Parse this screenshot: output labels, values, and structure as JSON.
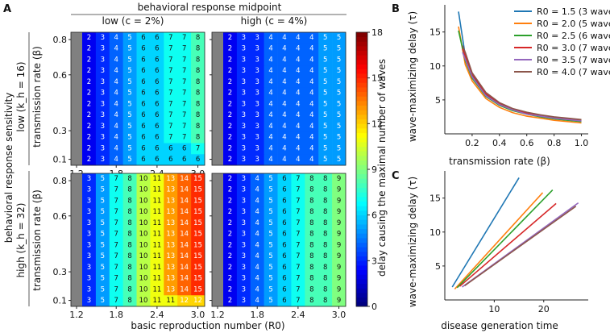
{
  "panel_labels": {
    "a": "A",
    "b": "B",
    "c": "C"
  },
  "chart_data": [
    {
      "panel": "A",
      "type": "heatmap",
      "title": "behavioral response midpoint",
      "col_titles": [
        "low (c = 2%)",
        "high (c = 4%)"
      ],
      "row_group_title": "behavioral response sensitivity",
      "row_titles": [
        "low (k_h = 16)",
        "high (k_h = 32)"
      ],
      "xlabel": "basic reproduction number (R0)",
      "ylabel": "transmission rate (β)",
      "xticks": [
        "1.2",
        "1.8",
        "2.4",
        "3.0"
      ],
      "yticks": [
        "0.1",
        "0.3",
        "0.6",
        "0.8"
      ],
      "colorbar_label": "delay causing the maximal number of waves",
      "colorbar_ticks": [
        "0",
        "3",
        "6",
        "9",
        "12",
        "15",
        "18"
      ],
      "colorbar_range": [
        0,
        18
      ],
      "note": "Grey column = not applicable. Rows listed top (β≈0.8) to bottom (β≈0.1).",
      "subplots": [
        {
          "name": "low-k16-low-c2",
          "rows": [
            [
              "2",
              "3",
              "4",
              "5",
              "6",
              "6",
              "7",
              "7",
              "8"
            ],
            [
              "2",
              "3",
              "4",
              "5",
              "6",
              "6",
              "7",
              "7",
              "8"
            ],
            [
              "2",
              "3",
              "4",
              "5",
              "6",
              "6",
              "7",
              "7",
              "8"
            ],
            [
              "2",
              "3",
              "4",
              "5",
              "6",
              "6",
              "7",
              "7",
              "8"
            ],
            [
              "2",
              "3",
              "4",
              "5",
              "6",
              "6",
              "7",
              "7",
              "8"
            ],
            [
              "2",
              "3",
              "4",
              "5",
              "6",
              "6",
              "7",
              "7",
              "8"
            ],
            [
              "2",
              "3",
              "4",
              "5",
              "6",
              "6",
              "7",
              "7",
              "8"
            ],
            [
              "2",
              "3",
              "4",
              "5",
              "6",
              "6",
              "7",
              "7",
              "8"
            ],
            [
              "2",
              "3",
              "4",
              "5",
              "6",
              "6",
              "7",
              "7",
              "8"
            ],
            [
              "2",
              "3",
              "4",
              "5",
              "6",
              "6",
              "7",
              "7",
              "8"
            ],
            [
              "2",
              "3",
              "4",
              "5",
              "6",
              "6",
              "6",
              "6",
              "7"
            ],
            [
              "2",
              "3",
              "4",
              "5",
              "6",
              "6",
              "6",
              "6",
              "6"
            ]
          ]
        },
        {
          "name": "low-k16-high-c4",
          "rows": [
            [
              "2",
              "3",
              "3",
              "4",
              "4",
              "4",
              "4",
              "5",
              "5"
            ],
            [
              "2",
              "3",
              "3",
              "4",
              "4",
              "4",
              "4",
              "5",
              "5"
            ],
            [
              "2",
              "3",
              "3",
              "4",
              "4",
              "4",
              "4",
              "5",
              "5"
            ],
            [
              "2",
              "3",
              "3",
              "4",
              "4",
              "4",
              "4",
              "5",
              "5"
            ],
            [
              "2",
              "3",
              "3",
              "4",
              "4",
              "4",
              "4",
              "5",
              "5"
            ],
            [
              "2",
              "3",
              "3",
              "4",
              "4",
              "4",
              "4",
              "5",
              "5"
            ],
            [
              "2",
              "3",
              "3",
              "4",
              "4",
              "4",
              "4",
              "5",
              "5"
            ],
            [
              "2",
              "3",
              "3",
              "4",
              "4",
              "4",
              "4",
              "5",
              "5"
            ],
            [
              "2",
              "3",
              "3",
              "4",
              "4",
              "4",
              "4",
              "5",
              "5"
            ],
            [
              "2",
              "3",
              "3",
              "4",
              "4",
              "4",
              "4",
              "5",
              "5"
            ],
            [
              "2",
              "3",
              "3",
              "4",
              "4",
              "4",
              "4",
              "5",
              "5"
            ],
            [
              "2",
              "3",
              "3",
              "4",
              "4",
              "4",
              "4",
              "5",
              "5"
            ]
          ]
        },
        {
          "name": "high-k32-low-c2",
          "rows": [
            [
              "3",
              "5",
              "7",
              "8",
              "10",
              "11",
              "13",
              "14",
              "15"
            ],
            [
              "3",
              "5",
              "7",
              "8",
              "10",
              "11",
              "13",
              "14",
              "15"
            ],
            [
              "3",
              "5",
              "7",
              "8",
              "10",
              "11",
              "13",
              "14",
              "15"
            ],
            [
              "3",
              "5",
              "7",
              "8",
              "10",
              "11",
              "13",
              "14",
              "15"
            ],
            [
              "3",
              "5",
              "7",
              "8",
              "10",
              "11",
              "13",
              "14",
              "15"
            ],
            [
              "3",
              "5",
              "7",
              "8",
              "10",
              "11",
              "13",
              "14",
              "15"
            ],
            [
              "3",
              "5",
              "7",
              "8",
              "10",
              "11",
              "13",
              "14",
              "15"
            ],
            [
              "3",
              "5",
              "7",
              "8",
              "10",
              "11",
              "13",
              "14",
              "15"
            ],
            [
              "3",
              "5",
              "7",
              "8",
              "10",
              "11",
              "13",
              "14",
              "15"
            ],
            [
              "3",
              "5",
              "7",
              "8",
              "10",
              "11",
              "13",
              "14",
              "15"
            ],
            [
              "3",
              "5",
              "7",
              "8",
              "10",
              "11",
              "13",
              "14",
              "15"
            ],
            [
              "3",
              "5",
              "7",
              "8",
              "10",
              "11",
              "11",
              "12",
              "12"
            ]
          ]
        },
        {
          "name": "high-k32-high-c4",
          "rows": [
            [
              "2",
              "3",
              "4",
              "5",
              "6",
              "7",
              "8",
              "8",
              "9"
            ],
            [
              "2",
              "3",
              "4",
              "5",
              "6",
              "7",
              "8",
              "8",
              "9"
            ],
            [
              "2",
              "3",
              "4",
              "5",
              "6",
              "7",
              "8",
              "8",
              "9"
            ],
            [
              "2",
              "3",
              "4",
              "5",
              "6",
              "7",
              "8",
              "8",
              "9"
            ],
            [
              "2",
              "3",
              "4",
              "5",
              "6",
              "7",
              "8",
              "8",
              "9"
            ],
            [
              "2",
              "3",
              "4",
              "5",
              "6",
              "7",
              "8",
              "8",
              "9"
            ],
            [
              "2",
              "3",
              "4",
              "5",
              "6",
              "7",
              "8",
              "8",
              "9"
            ],
            [
              "2",
              "3",
              "4",
              "5",
              "6",
              "7",
              "8",
              "8",
              "9"
            ],
            [
              "2",
              "3",
              "4",
              "5",
              "6",
              "7",
              "8",
              "8",
              "9"
            ],
            [
              "2",
              "3",
              "4",
              "5",
              "6",
              "7",
              "8",
              "8",
              "9"
            ],
            [
              "2",
              "3",
              "4",
              "5",
              "6",
              "7",
              "8",
              "8",
              "9"
            ],
            [
              "2",
              "3",
              "4",
              "5",
              "6",
              "7",
              "8",
              "8",
              "9"
            ]
          ]
        }
      ]
    },
    {
      "panel": "B",
      "type": "line",
      "xlabel": "transmission rate (β)",
      "ylabel": "wave-maximizing delay (τ)",
      "xlim": [
        0.0,
        1.05
      ],
      "ylim": [
        0,
        19
      ],
      "xticks": [
        "0.2",
        "0.4",
        "0.6",
        "0.8",
        "1.0"
      ],
      "yticks": [
        "5",
        "10",
        "15"
      ],
      "legend_position": "top-right",
      "series": [
        {
          "name": "R0 = 1.5 (3 waves)",
          "color": "#1f77b4",
          "x": [
            0.1,
            0.15,
            0.2,
            0.3,
            0.4,
            0.5,
            0.6,
            0.7,
            0.8,
            0.9,
            1.0
          ],
          "y": [
            18.0,
            11.5,
            8.6,
            5.8,
            4.4,
            3.6,
            3.0,
            2.6,
            2.3,
            2.1,
            1.9
          ]
        },
        {
          "name": "R0 = 2.0 (5 waves)",
          "color": "#ff7f0e",
          "x": [
            0.1,
            0.15,
            0.2,
            0.3,
            0.4,
            0.5,
            0.6,
            0.7,
            0.8,
            0.9,
            1.0
          ],
          "y": [
            15.8,
            10.2,
            7.8,
            5.2,
            3.9,
            3.1,
            2.6,
            2.3,
            2.0,
            1.8,
            1.6
          ]
        },
        {
          "name": "R0 = 2.5 (6 waves)",
          "color": "#2ca02c",
          "x": [
            0.1,
            0.15,
            0.2,
            0.3,
            0.4,
            0.5,
            0.6,
            0.7,
            0.8,
            0.9,
            1.0
          ],
          "y": [
            15.2,
            10.8,
            8.2,
            5.5,
            4.2,
            3.4,
            2.9,
            2.5,
            2.2,
            2.0,
            1.8
          ]
        },
        {
          "name": "R0 = 3.0 (7 waves)",
          "color": "#d62728",
          "x": [
            0.13,
            0.15,
            0.2,
            0.3,
            0.4,
            0.5,
            0.6,
            0.7,
            0.8,
            0.9,
            1.0
          ],
          "y": [
            12.5,
            11.5,
            8.8,
            5.9,
            4.5,
            3.6,
            3.1,
            2.7,
            2.4,
            2.2,
            2.0
          ]
        },
        {
          "name": "R0 = 3.5 (7 waves)",
          "color": "#9467bd",
          "x": [
            0.13,
            0.15,
            0.2,
            0.3,
            0.4,
            0.5,
            0.6,
            0.7,
            0.8,
            0.9,
            1.0
          ],
          "y": [
            12.0,
            11.0,
            8.4,
            5.6,
            4.3,
            3.5,
            2.9,
            2.6,
            2.3,
            2.1,
            1.9
          ]
        },
        {
          "name": "R0 = 4.0 (7 waves)",
          "color": "#8c564b",
          "x": [
            0.13,
            0.15,
            0.2,
            0.3,
            0.4,
            0.5,
            0.6,
            0.7,
            0.8,
            0.9,
            1.0
          ],
          "y": [
            13.0,
            12.0,
            9.0,
            6.1,
            4.6,
            3.7,
            3.2,
            2.8,
            2.5,
            2.3,
            2.1
          ]
        }
      ]
    },
    {
      "panel": "C",
      "type": "line",
      "xlabel": "disease generation time",
      "ylabel": "wave-maximizing delay (τ)",
      "xlim": [
        0,
        29
      ],
      "ylim": [
        0,
        19
      ],
      "xticks": [
        "10",
        "20"
      ],
      "yticks": [
        "5",
        "10",
        "15"
      ],
      "series": [
        {
          "name": "R0 = 1.5 (3 waves)",
          "color": "#1f77b4",
          "x": [
            1.5,
            15.0
          ],
          "y": [
            1.9,
            18.0
          ]
        },
        {
          "name": "R0 = 2.0 (5 waves)",
          "color": "#ff7f0e",
          "x": [
            2.0,
            19.8
          ],
          "y": [
            1.6,
            15.8
          ]
        },
        {
          "name": "R0 = 2.5 (6 waves)",
          "color": "#2ca02c",
          "x": [
            2.5,
            21.8
          ],
          "y": [
            1.8,
            16.2
          ]
        },
        {
          "name": "R0 = 3.0 (7 waves)",
          "color": "#d62728",
          "x": [
            3.0,
            22.5
          ],
          "y": [
            2.0,
            14.2
          ]
        },
        {
          "name": "R0 = 3.5 (7 waves)",
          "color": "#9467bd",
          "x": [
            3.5,
            27.0
          ],
          "y": [
            1.9,
            14.3
          ]
        },
        {
          "name": "R0 = 4.0 (7 waves)",
          "color": "#8c564b",
          "x": [
            4.0,
            26.5
          ],
          "y": [
            2.1,
            13.8
          ]
        }
      ]
    }
  ]
}
